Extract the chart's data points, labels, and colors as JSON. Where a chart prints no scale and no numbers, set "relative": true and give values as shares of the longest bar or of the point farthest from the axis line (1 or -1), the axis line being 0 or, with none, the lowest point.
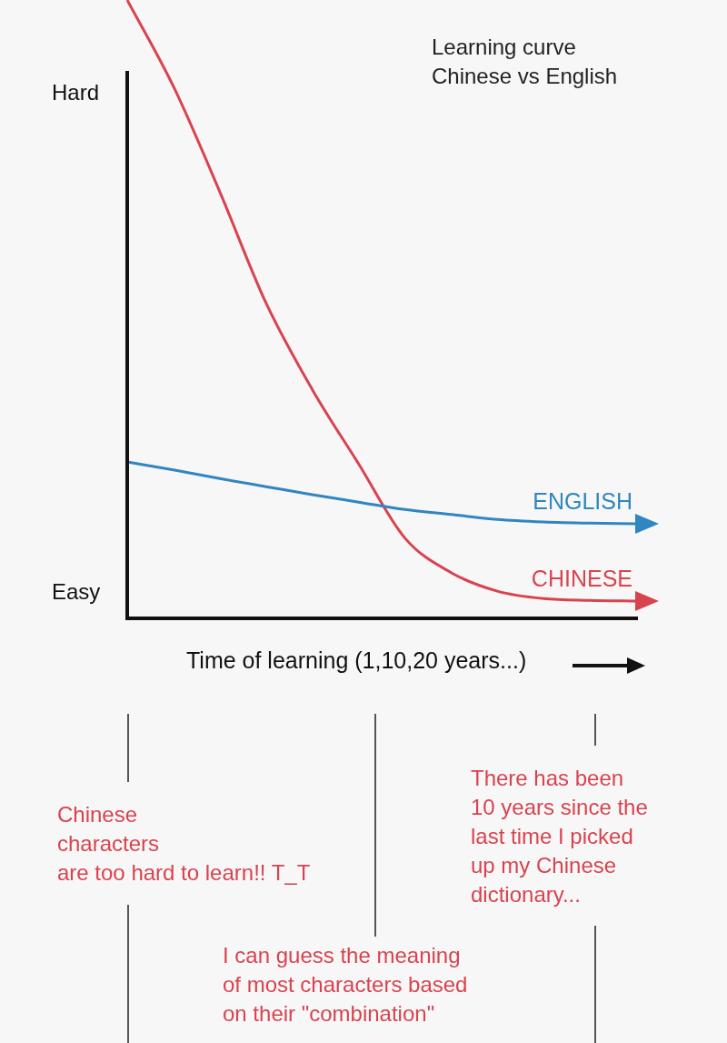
{
  "chart_data": {
    "type": "line",
    "relative": true,
    "title": "Learning curve\nChinese vs English",
    "xlabel": "Time of learning (1,10,20 years...)",
    "categories": [
      null,
      null,
      null,
      null,
      null,
      null,
      null,
      null,
      null,
      null,
      null,
      null
    ],
    "series": [
      {
        "name": "ENGLISH",
        "color": "#2f86c0",
        "values": [
          0.253,
          0.24,
          0.226,
          0.213,
          0.2,
          0.188,
          0.176,
          0.168,
          0.16,
          0.156,
          0.154,
          0.153
        ]
      },
      {
        "name": "CHINESE",
        "color": "#d9434f",
        "values": [
          1.0,
          0.86,
          0.69,
          0.51,
          0.37,
          0.25,
          0.13,
          0.074,
          0.044,
          0.032,
          0.029,
          0.028
        ]
      }
    ],
    "annotations": [
      "Hard",
      "Easy",
      "Chinese\ncharacters\nare too hard to learn!! T_T",
      "I can guess the meaning\nof most characters based\non their \"combination\"",
      "There has been\n10 years since the\nlast time I picked\nup my Chinese\ndictionary..."
    ],
    "marker": "none",
    "line_style": "solid",
    "legend": "right"
  }
}
